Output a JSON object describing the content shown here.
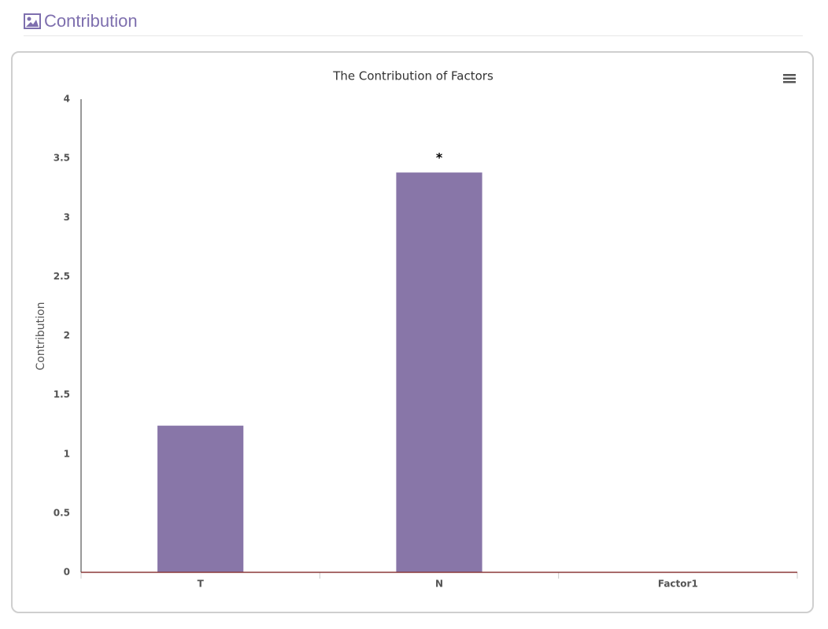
{
  "header": {
    "title": "Contribution"
  },
  "chart_data": {
    "type": "bar",
    "title": "The Contribution of Factors",
    "y_label": "Contribution",
    "categories": [
      "T",
      "N",
      "Factor1"
    ],
    "values": [
      1.24,
      3.38,
      0
    ],
    "markers": [
      null,
      "*",
      null
    ],
    "color": "#8876a8",
    "ylim": [
      0,
      4
    ],
    "yticks": [
      0,
      0.5,
      1,
      1.5,
      2,
      2.5,
      3,
      3.5,
      4
    ],
    "grid": false
  }
}
